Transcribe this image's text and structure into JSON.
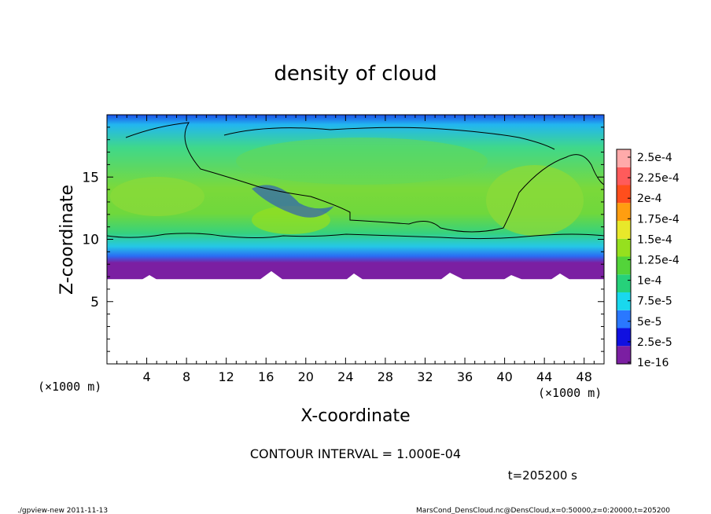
{
  "chart_data": {
    "type": "heatmap",
    "title": "density of cloud",
    "xlabel": "X-coordinate",
    "ylabel": "Z-coordinate",
    "x_unit_label": "(×1000 m)",
    "z_unit_label": "(×1000 m)",
    "x_range": [
      0,
      50
    ],
    "z_range": [
      0,
      20
    ],
    "x_ticks": [
      4,
      8,
      12,
      16,
      20,
      24,
      28,
      32,
      36,
      40,
      44,
      48
    ],
    "z_ticks": [
      5,
      10,
      15
    ],
    "colorbar": {
      "labels": [
        "1e-16",
        "2.5e-5",
        "5e-5",
        "7.5e-5",
        "1e-4",
        "1.25e-4",
        "1.5e-4",
        "1.75e-4",
        "2e-4",
        "2.25e-4",
        "2.5e-4"
      ],
      "colors": [
        "#7b1fa2",
        "#1010e0",
        "#2a78ff",
        "#19d8ee",
        "#26d17a",
        "#53d43a",
        "#96e01e",
        "#e8e82a",
        "#ff9e10",
        "#ff4e1c",
        "#ff5b5b",
        "#ffaaaa"
      ]
    },
    "contour_interval": "CONTOUR INTERVAL = 1.000E-04",
    "time_label": "t=205200 s",
    "cloud_base_z": 6.8,
    "cloud_top_z": 20
  },
  "footer": {
    "program": "./gpview-new   2011-11-13",
    "source": "MarsCond_DensCloud.nc@DensCloud,x=0:50000,z=0:20000,t=205200"
  }
}
